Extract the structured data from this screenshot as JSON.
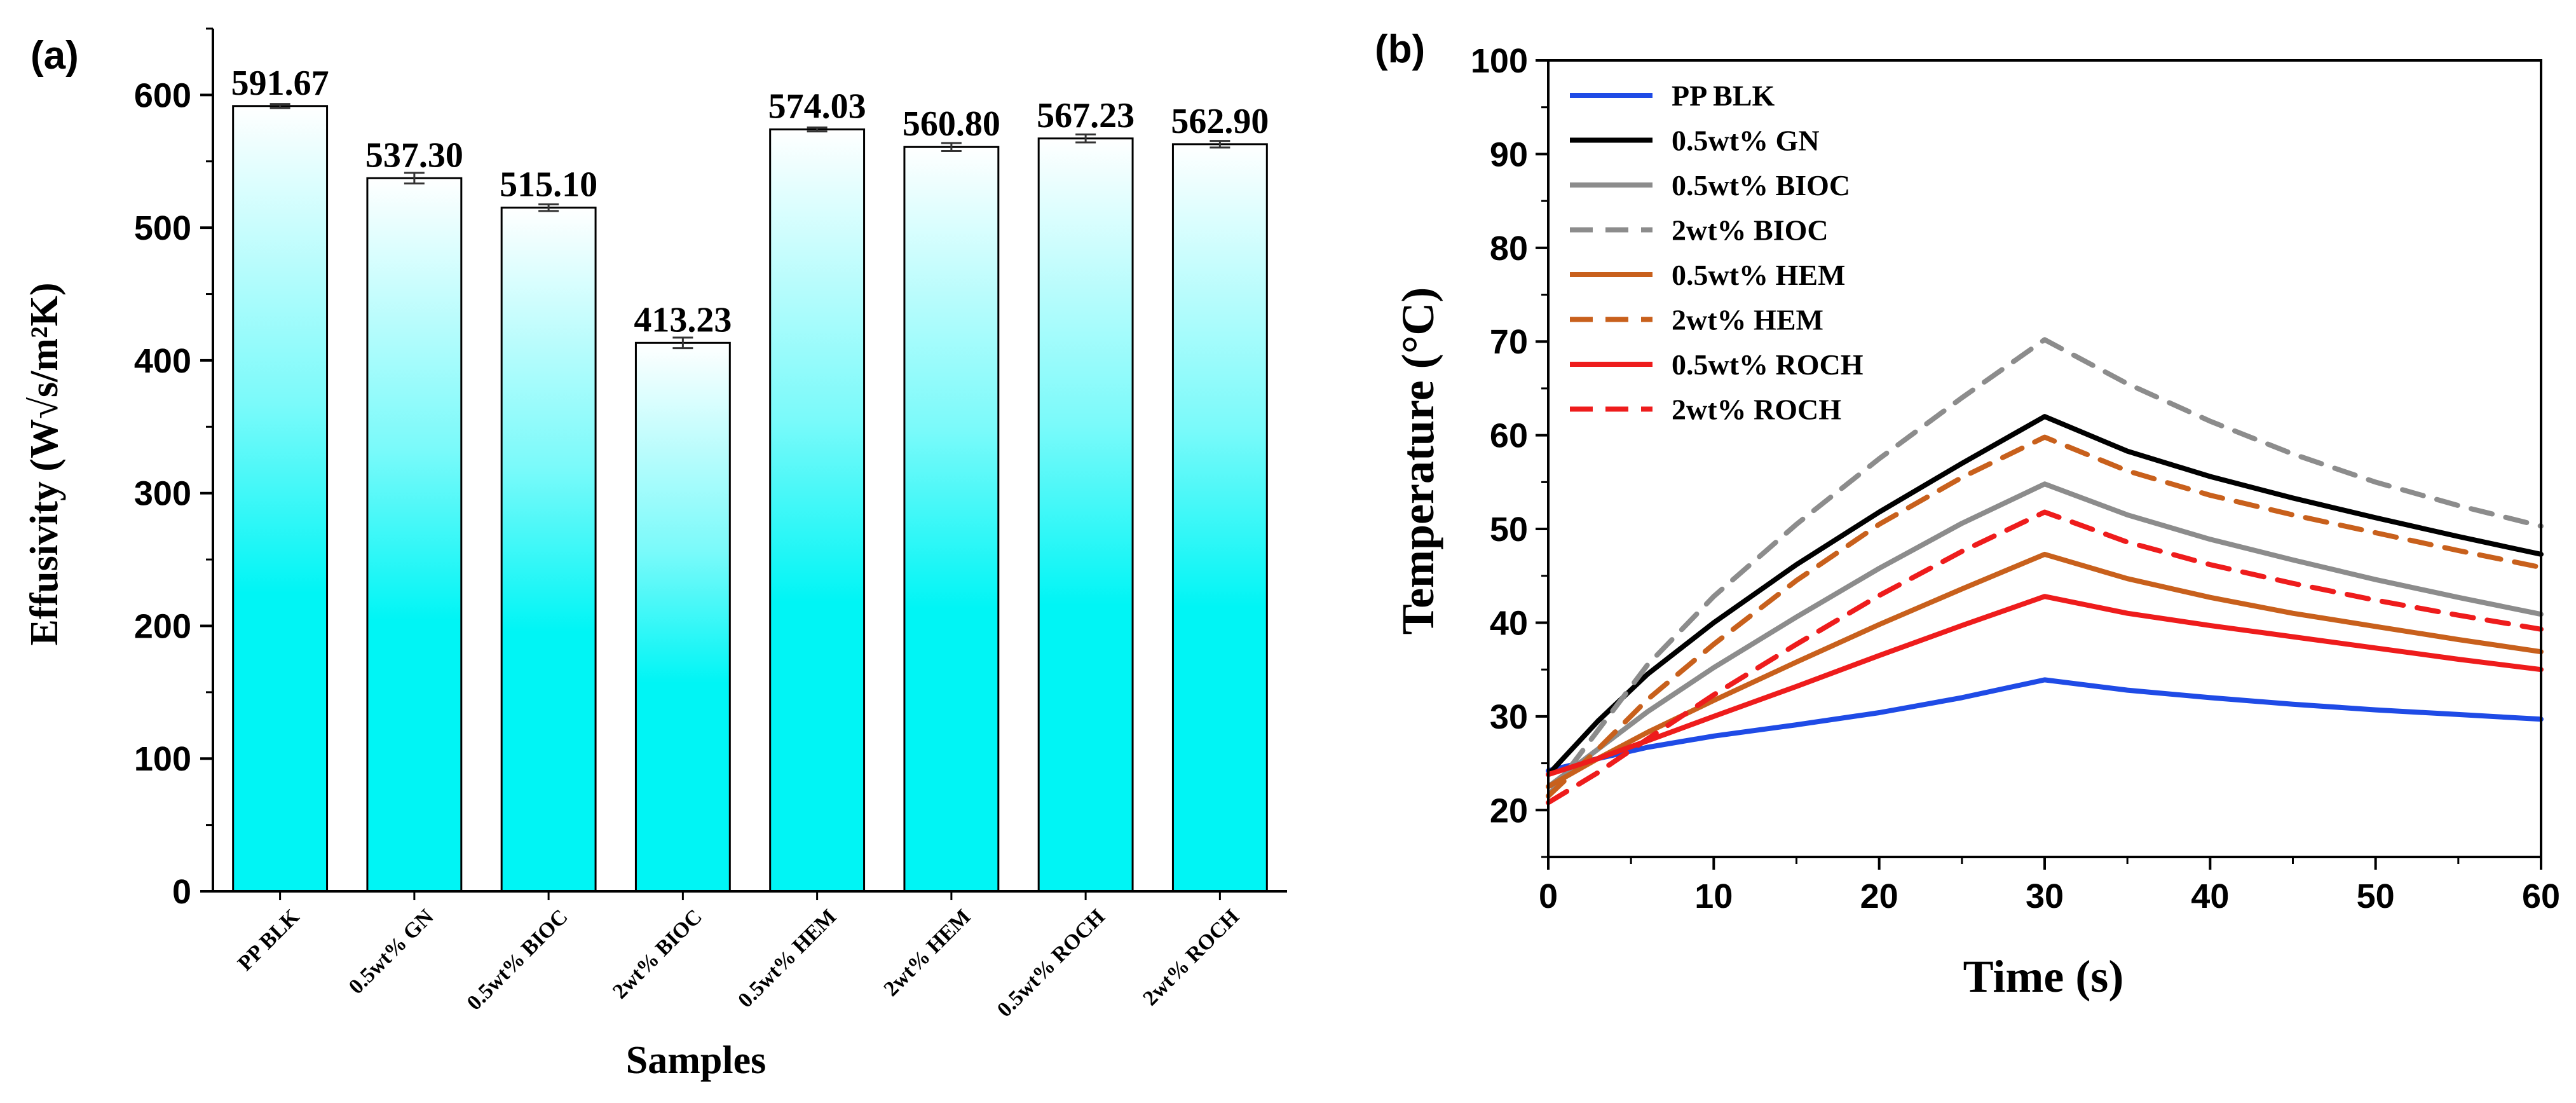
{
  "chart_data": [
    {
      "type": "bar",
      "panel_label": "(a)",
      "title": "",
      "xlabel": "Samples",
      "ylabel": "Effusivity (W√s/m²K)",
      "ylim": [
        0,
        650
      ],
      "yticks": [
        "0",
        "100",
        "200",
        "300",
        "400",
        "500",
        "600"
      ],
      "categories": [
        "PP BLK",
        "0.5wt% GN",
        "0.5wt% BIOC",
        "2wt% BIOC",
        "0.5wt% HEM",
        "2wt% HEM",
        "0.5wt% ROCH",
        "2wt% ROCH"
      ],
      "values": [
        591.67,
        537.3,
        515.1,
        413.23,
        574.03,
        560.8,
        567.23,
        562.9
      ],
      "value_labels": [
        "591.67",
        "537.30",
        "515.10",
        "413.23",
        "574.03",
        "560.80",
        "567.23",
        "562.90"
      ],
      "errors": [
        1.5,
        4,
        2.5,
        4,
        1.5,
        3,
        3,
        2.5
      ],
      "bar_fill": "gradient cyan-to-white",
      "colors": {
        "bar_bottom": "#00F5F5",
        "bar_top": "#FFFFFF",
        "outline": "#000000"
      }
    },
    {
      "type": "line",
      "panel_label": "(b)",
      "title": "",
      "xlabel": "Time (s)",
      "ylabel": "Temperature (°C)",
      "xlim": [
        0,
        60
      ],
      "ylim": [
        15,
        100
      ],
      "xticks": [
        "0",
        "10",
        "20",
        "30",
        "40",
        "50",
        "60"
      ],
      "yticks": [
        "20",
        "30",
        "40",
        "50",
        "60",
        "70",
        "80",
        "90",
        "100"
      ],
      "legend_position": "top-left",
      "series": [
        {
          "name": "PP BLK",
          "color": "#1F4BE6",
          "dash": "solid",
          "x": [
            0,
            3,
            6,
            10,
            15,
            20,
            25,
            30,
            35,
            40,
            45,
            50,
            55,
            60
          ],
          "y": [
            24.2,
            25.5,
            26.7,
            27.9,
            29.1,
            30.4,
            32.0,
            33.9,
            32.8,
            32.0,
            31.3,
            30.7,
            30.2,
            29.7
          ]
        },
        {
          "name": "0.5wt% GN",
          "color": "#000000",
          "dash": "solid",
          "x": [
            0,
            3,
            6,
            10,
            15,
            20,
            25,
            30,
            35,
            40,
            45,
            50,
            55,
            60
          ],
          "y": [
            23.8,
            29.5,
            34.5,
            40.0,
            46.2,
            51.8,
            57.0,
            62.0,
            58.3,
            55.6,
            53.3,
            51.2,
            49.2,
            47.3
          ]
        },
        {
          "name": "0.5wt% BIOC",
          "color": "#8C8C8C",
          "dash": "solid",
          "x": [
            0,
            3,
            6,
            10,
            15,
            20,
            25,
            30,
            35,
            40,
            45,
            50,
            55,
            60
          ],
          "y": [
            22.5,
            26.5,
            30.5,
            35.2,
            40.6,
            45.8,
            50.6,
            54.8,
            51.5,
            48.9,
            46.7,
            44.6,
            42.7,
            40.9
          ]
        },
        {
          "name": "2wt% BIOC",
          "color": "#8C8C8C",
          "dash": "dashed",
          "x": [
            0,
            3,
            6,
            10,
            15,
            20,
            25,
            30,
            35,
            40,
            45,
            50,
            55,
            60
          ],
          "y": [
            21.5,
            28.5,
            35.5,
            42.8,
            50.5,
            57.5,
            64.0,
            70.2,
            65.5,
            61.5,
            58.0,
            55.0,
            52.5,
            50.3
          ]
        },
        {
          "name": "0.5wt% HEM",
          "color": "#C8601C",
          "dash": "solid",
          "x": [
            0,
            3,
            6,
            10,
            15,
            20,
            25,
            30,
            35,
            40,
            45,
            50,
            55,
            60
          ],
          "y": [
            22.5,
            25.5,
            28.3,
            31.7,
            35.8,
            39.8,
            43.6,
            47.3,
            44.7,
            42.7,
            41.0,
            39.6,
            38.2,
            36.9
          ]
        },
        {
          "name": "2wt% HEM",
          "color": "#C8601C",
          "dash": "dashed",
          "x": [
            0,
            3,
            6,
            10,
            15,
            20,
            25,
            30,
            35,
            40,
            45,
            50,
            55,
            60
          ],
          "y": [
            21.5,
            26.5,
            31.8,
            37.7,
            44.5,
            50.5,
            55.5,
            59.8,
            56.2,
            53.6,
            51.5,
            49.6,
            47.7,
            45.9
          ]
        },
        {
          "name": "0.5wt% ROCH",
          "color": "#EE1C1C",
          "dash": "solid",
          "x": [
            0,
            3,
            6,
            10,
            15,
            20,
            25,
            30,
            35,
            40,
            45,
            50,
            55,
            60
          ],
          "y": [
            23.8,
            25.5,
            27.4,
            30.0,
            33.2,
            36.5,
            39.7,
            42.8,
            41.0,
            39.7,
            38.5,
            37.3,
            36.1,
            35.0
          ]
        },
        {
          "name": "2wt% ROCH",
          "color": "#EE1C1C",
          "dash": "dashed",
          "x": [
            0,
            3,
            6,
            10,
            15,
            20,
            25,
            30,
            35,
            40,
            45,
            50,
            55,
            60
          ],
          "y": [
            20.8,
            24.0,
            27.6,
            32.3,
            37.7,
            42.9,
            47.6,
            51.8,
            48.6,
            46.2,
            44.2,
            42.4,
            40.8,
            39.3
          ]
        }
      ]
    }
  ]
}
